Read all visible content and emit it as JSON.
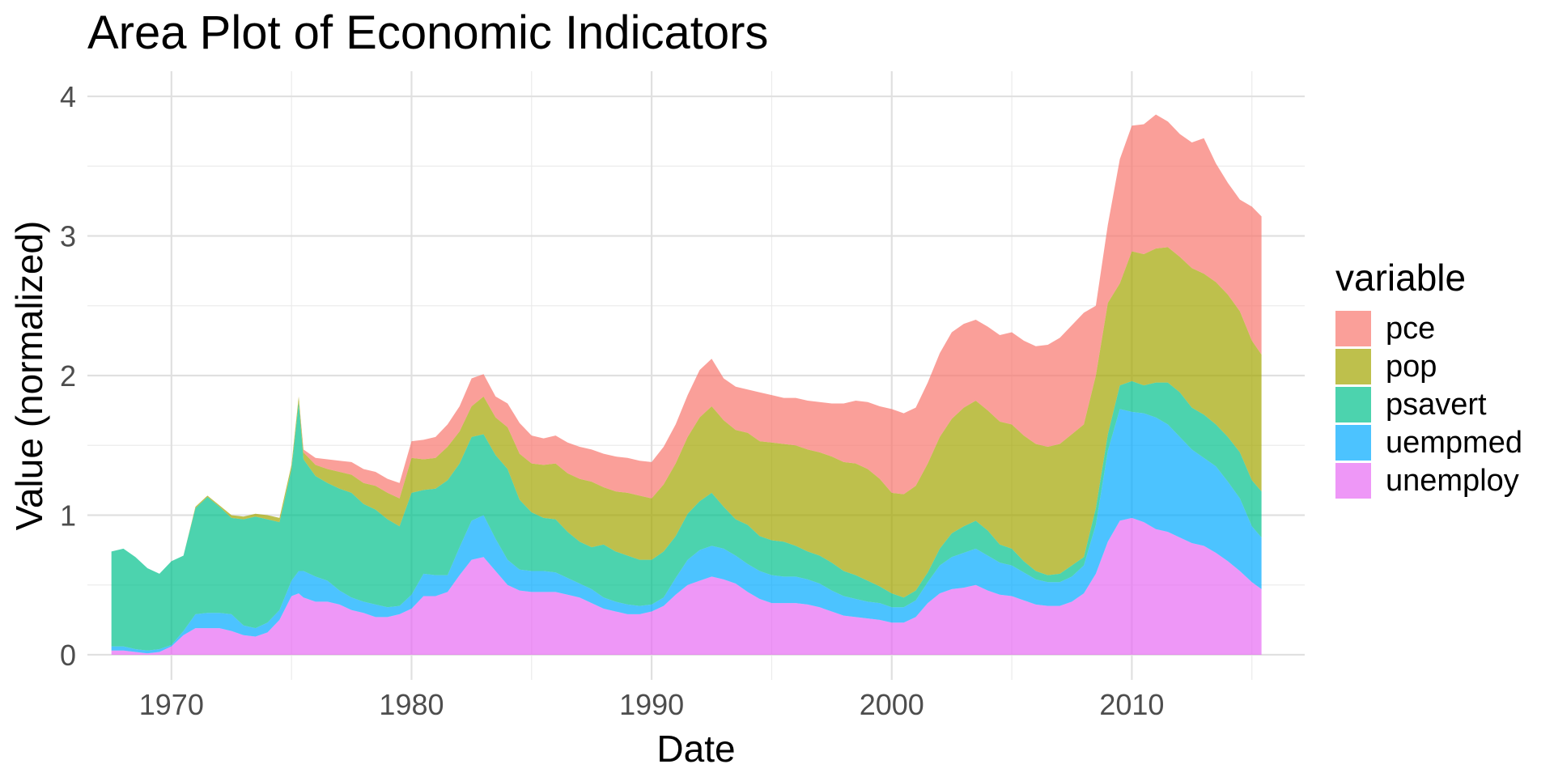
{
  "chart_data": {
    "type": "area",
    "stacked": true,
    "title": "Area Plot of Economic Indicators",
    "xlabel": "Date",
    "ylabel": "Value (normalized)",
    "xlim": [
      1966.5,
      2017.2
    ],
    "ylim": [
      -0.18,
      4.18
    ],
    "xticks": [
      1970,
      1980,
      1990,
      2000,
      2010
    ],
    "xtick_labels": [
      "1970",
      "1980",
      "1990",
      "2000",
      "2010"
    ],
    "yticks": [
      0,
      1,
      2,
      3,
      4
    ],
    "ytick_labels": [
      "0",
      "1",
      "2",
      "3",
      "4"
    ],
    "grid": true,
    "legend": {
      "title": "variable",
      "position": "right"
    },
    "x": [
      1967.5,
      1968,
      1968.5,
      1969,
      1969.5,
      1970,
      1970.5,
      1971,
      1971.5,
      1972,
      1972.5,
      1973,
      1973.5,
      1974,
      1974.5,
      1975,
      1975.3,
      1975.5,
      1976,
      1976.5,
      1977,
      1977.5,
      1978,
      1978.5,
      1979,
      1979.5,
      1980,
      1980.5,
      1981,
      1981.5,
      1982,
      1982.5,
      1983,
      1983.5,
      1984,
      1984.5,
      1985,
      1985.5,
      1986,
      1986.5,
      1987,
      1987.5,
      1988,
      1988.5,
      1989,
      1989.5,
      1990,
      1990.5,
      1991,
      1991.5,
      1992,
      1992.5,
      1993,
      1993.5,
      1994,
      1994.5,
      1995,
      1995.5,
      1996,
      1996.5,
      1997,
      1997.5,
      1998,
      1998.5,
      1999,
      1999.5,
      2000,
      2000.5,
      2001,
      2001.5,
      2002,
      2002.5,
      2003,
      2003.5,
      2004,
      2004.5,
      2005,
      2005.5,
      2006,
      2006.5,
      2007,
      2007.5,
      2008,
      2008.5,
      2009,
      2009.5,
      2010,
      2010.5,
      2011,
      2011.5,
      2012,
      2012.5,
      2013,
      2013.5,
      2014,
      2014.5,
      2015,
      2015.4
    ],
    "series": [
      {
        "name": "unemploy",
        "color": "#e76bf3",
        "values": [
          0.03,
          0.03,
          0.02,
          0.01,
          0.02,
          0.06,
          0.14,
          0.19,
          0.19,
          0.19,
          0.17,
          0.14,
          0.13,
          0.16,
          0.25,
          0.42,
          0.44,
          0.41,
          0.38,
          0.38,
          0.36,
          0.32,
          0.3,
          0.27,
          0.27,
          0.29,
          0.33,
          0.42,
          0.42,
          0.45,
          0.57,
          0.68,
          0.7,
          0.6,
          0.5,
          0.46,
          0.45,
          0.45,
          0.45,
          0.43,
          0.41,
          0.37,
          0.33,
          0.31,
          0.29,
          0.29,
          0.31,
          0.35,
          0.43,
          0.5,
          0.53,
          0.56,
          0.54,
          0.51,
          0.45,
          0.4,
          0.37,
          0.37,
          0.37,
          0.36,
          0.34,
          0.31,
          0.28,
          0.27,
          0.26,
          0.25,
          0.23,
          0.23,
          0.27,
          0.37,
          0.44,
          0.47,
          0.48,
          0.5,
          0.46,
          0.43,
          0.42,
          0.39,
          0.36,
          0.35,
          0.35,
          0.38,
          0.44,
          0.58,
          0.81,
          0.96,
          0.98,
          0.95,
          0.9,
          0.88,
          0.84,
          0.8,
          0.78,
          0.73,
          0.67,
          0.6,
          0.52,
          0.47
        ]
      },
      {
        "name": "uempmed",
        "color": "#00a9ff",
        "values": [
          0.03,
          0.03,
          0.02,
          0.02,
          0.02,
          0.01,
          0.03,
          0.1,
          0.11,
          0.11,
          0.12,
          0.07,
          0.06,
          0.07,
          0.07,
          0.11,
          0.16,
          0.19,
          0.18,
          0.15,
          0.1,
          0.09,
          0.08,
          0.09,
          0.07,
          0.06,
          0.1,
          0.16,
          0.15,
          0.12,
          0.2,
          0.28,
          0.3,
          0.23,
          0.18,
          0.15,
          0.15,
          0.15,
          0.14,
          0.12,
          0.1,
          0.1,
          0.08,
          0.07,
          0.07,
          0.06,
          0.05,
          0.06,
          0.12,
          0.18,
          0.22,
          0.22,
          0.22,
          0.2,
          0.2,
          0.2,
          0.2,
          0.19,
          0.19,
          0.18,
          0.17,
          0.15,
          0.14,
          0.13,
          0.12,
          0.12,
          0.11,
          0.11,
          0.12,
          0.15,
          0.2,
          0.23,
          0.25,
          0.26,
          0.25,
          0.23,
          0.22,
          0.2,
          0.18,
          0.17,
          0.17,
          0.18,
          0.2,
          0.35,
          0.65,
          0.8,
          0.76,
          0.78,
          0.8,
          0.77,
          0.72,
          0.67,
          0.63,
          0.62,
          0.57,
          0.52,
          0.4,
          0.37
        ]
      },
      {
        "name": "psavert",
        "color": "#00c08b",
        "values": [
          0.68,
          0.7,
          0.66,
          0.59,
          0.54,
          0.6,
          0.54,
          0.76,
          0.83,
          0.76,
          0.69,
          0.76,
          0.8,
          0.74,
          0.63,
          0.8,
          1.21,
          0.8,
          0.72,
          0.7,
          0.73,
          0.75,
          0.7,
          0.68,
          0.63,
          0.57,
          0.73,
          0.6,
          0.62,
          0.68,
          0.6,
          0.6,
          0.58,
          0.6,
          0.65,
          0.5,
          0.42,
          0.38,
          0.38,
          0.33,
          0.3,
          0.3,
          0.38,
          0.36,
          0.35,
          0.33,
          0.32,
          0.33,
          0.3,
          0.33,
          0.35,
          0.38,
          0.3,
          0.26,
          0.28,
          0.25,
          0.25,
          0.25,
          0.22,
          0.2,
          0.2,
          0.2,
          0.18,
          0.17,
          0.15,
          0.12,
          0.1,
          0.07,
          0.07,
          0.07,
          0.12,
          0.17,
          0.19,
          0.2,
          0.18,
          0.13,
          0.12,
          0.08,
          0.06,
          0.05,
          0.06,
          0.08,
          0.06,
          0.12,
          0.12,
          0.17,
          0.22,
          0.2,
          0.25,
          0.3,
          0.32,
          0.3,
          0.31,
          0.3,
          0.32,
          0.33,
          0.33,
          0.33
        ]
      },
      {
        "name": "pop",
        "color": "#a3a500",
        "values": [
          0,
          0,
          0,
          0,
          0,
          0,
          0,
          0.01,
          0.01,
          0.01,
          0.02,
          0.02,
          0.02,
          0.03,
          0.03,
          0.03,
          0.04,
          0.05,
          0.08,
          0.1,
          0.12,
          0.13,
          0.15,
          0.17,
          0.19,
          0.2,
          0.25,
          0.22,
          0.22,
          0.24,
          0.23,
          0.22,
          0.27,
          0.27,
          0.3,
          0.33,
          0.35,
          0.38,
          0.4,
          0.42,
          0.45,
          0.47,
          0.41,
          0.43,
          0.45,
          0.46,
          0.44,
          0.48,
          0.52,
          0.55,
          0.6,
          0.62,
          0.62,
          0.64,
          0.66,
          0.68,
          0.7,
          0.7,
          0.72,
          0.73,
          0.74,
          0.76,
          0.78,
          0.8,
          0.8,
          0.77,
          0.72,
          0.74,
          0.75,
          0.78,
          0.8,
          0.82,
          0.85,
          0.86,
          0.86,
          0.88,
          0.89,
          0.9,
          0.91,
          0.92,
          0.93,
          0.94,
          0.95,
          0.95,
          0.94,
          0.73,
          0.93,
          0.94,
          0.96,
          0.97,
          0.97,
          1.0,
          1.01,
          1.02,
          1.02,
          1.01,
          1,
          0.98
        ]
      },
      {
        "name": "pce",
        "color": "#f8766d",
        "values": [
          0,
          0,
          0,
          0,
          0,
          0,
          0,
          0,
          0,
          0,
          0,
          0,
          0,
          0,
          0,
          0,
          0,
          0.02,
          0.05,
          0.07,
          0.08,
          0.09,
          0.1,
          0.1,
          0.1,
          0.11,
          0.12,
          0.14,
          0.15,
          0.16,
          0.18,
          0.2,
          0.16,
          0.15,
          0.17,
          0.22,
          0.2,
          0.19,
          0.2,
          0.22,
          0.23,
          0.23,
          0.24,
          0.25,
          0.25,
          0.25,
          0.26,
          0.27,
          0.28,
          0.3,
          0.34,
          0.34,
          0.3,
          0.31,
          0.31,
          0.35,
          0.34,
          0.33,
          0.34,
          0.35,
          0.36,
          0.38,
          0.42,
          0.45,
          0.48,
          0.52,
          0.6,
          0.58,
          0.56,
          0.58,
          0.6,
          0.62,
          0.6,
          0.58,
          0.6,
          0.62,
          0.66,
          0.68,
          0.7,
          0.73,
          0.76,
          0.78,
          0.8,
          0.5,
          0.56,
          0.89,
          0.9,
          0.93,
          0.96,
          0.9,
          0.88,
          0.9,
          0.97,
          0.85,
          0.8,
          0.8,
          0.96,
          0.99
        ]
      }
    ]
  }
}
